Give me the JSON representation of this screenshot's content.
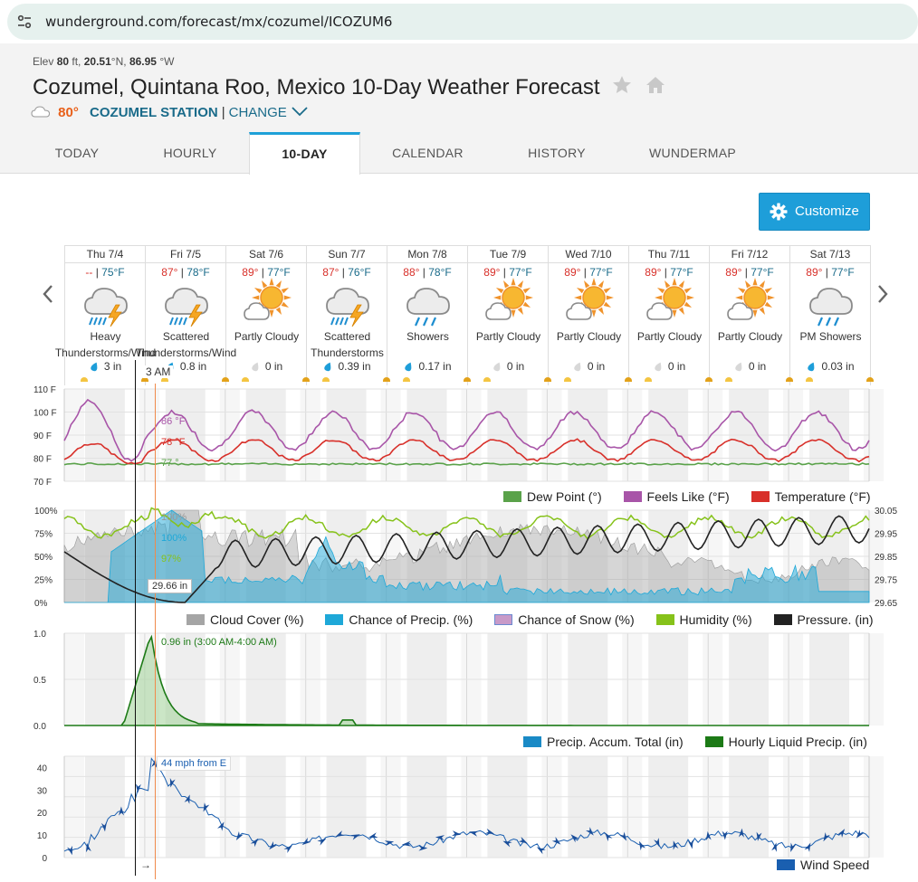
{
  "browser": {
    "url": "wunderground.com/forecast/mx/cozumel/ICOZUM6"
  },
  "header": {
    "elev_label": "Elev",
    "elev_value": "80",
    "elev_unit": "ft,",
    "lat_value": "20.51",
    "lat_unit": "°N,",
    "lon_value": "86.95",
    "lon_unit": "°W",
    "title": "Cozumel, Quintana Roo, Mexico 10-Day Weather Forecast",
    "current_temp": "80°",
    "station": "COZUMEL STATION",
    "separator": "|",
    "change_label": "CHANGE"
  },
  "tabs": [
    {
      "label": "TODAY"
    },
    {
      "label": "HOURLY"
    },
    {
      "label": "10-DAY"
    },
    {
      "label": "CALENDAR"
    },
    {
      "label": "HISTORY"
    },
    {
      "label": "WUNDERMAP"
    }
  ],
  "customize_label": "Customize",
  "days": [
    {
      "name": "Thu 7/4",
      "hi": "--",
      "lo": "75°F",
      "icon": "thunderstorm-icon",
      "cond": "Heavy",
      "cond2": "Thunderstorms/Wind",
      "precip": "3 in",
      "wet": true
    },
    {
      "name": "Fri 7/5",
      "hi": "87°",
      "lo": "78°F",
      "icon": "thunderstorm-icon",
      "cond": "Scattered",
      "cond2": "Thunderstorms/Wind",
      "precip": "0.8 in",
      "wet": true
    },
    {
      "name": "Sat 7/6",
      "hi": "89°",
      "lo": "77°F",
      "icon": "partly-cloudy-icon",
      "cond": "Partly Cloudy",
      "cond2": "",
      "precip": "0 in",
      "wet": false
    },
    {
      "name": "Sun 7/7",
      "hi": "87°",
      "lo": "76°F",
      "icon": "thunderstorm-icon",
      "cond": "Scattered",
      "cond2": "Thunderstorms",
      "precip": "0.39 in",
      "wet": true
    },
    {
      "name": "Mon 7/8",
      "hi": "88°",
      "lo": "78°F",
      "icon": "showers-icon",
      "cond": "Showers",
      "cond2": "",
      "precip": "0.17 in",
      "wet": true
    },
    {
      "name": "Tue 7/9",
      "hi": "89°",
      "lo": "77°F",
      "icon": "partly-cloudy-icon",
      "cond": "Partly Cloudy",
      "cond2": "",
      "precip": "0 in",
      "wet": false
    },
    {
      "name": "Wed 7/10",
      "hi": "89°",
      "lo": "77°F",
      "icon": "partly-cloudy-icon",
      "cond": "Partly Cloudy",
      "cond2": "",
      "precip": "0 in",
      "wet": false
    },
    {
      "name": "Thu 7/11",
      "hi": "89°",
      "lo": "77°F",
      "icon": "partly-cloudy-icon",
      "cond": "Partly Cloudy",
      "cond2": "",
      "precip": "0 in",
      "wet": false
    },
    {
      "name": "Fri 7/12",
      "hi": "89°",
      "lo": "77°F",
      "icon": "partly-cloudy-icon",
      "cond": "Partly Cloudy",
      "cond2": "",
      "precip": "0 in",
      "wet": false
    },
    {
      "name": "Sat 7/13",
      "hi": "89°",
      "lo": "77°F",
      "icon": "showers-icon",
      "cond": "PM Showers",
      "cond2": "",
      "precip": "0.03 in",
      "wet": true
    }
  ],
  "hover": {
    "time": "3 AM",
    "pressure": "29.66 in",
    "wind": "44 mph from E",
    "wind_arrow": "→",
    "precip": "0.96 in (3:00 AM-4:00 AM)"
  },
  "colors": {
    "temperature": "#d8302a",
    "feels_like": "#a855a8",
    "dew_point": "#5aa24a",
    "cloud_cover": "#a5a5a5",
    "chance_precip": "#1ea8d8",
    "chance_snow": "#c89ac8",
    "humidity": "#86c21a",
    "pressure": "#222222",
    "precip_accum": "#1a8ac6",
    "hourly_precip": "#1c7a16",
    "wind": "#1a5fb0"
  },
  "chart_data": [
    {
      "type": "line",
      "ticks": [
        "110 F",
        "100 F",
        "90 F",
        "80 F",
        "70 F"
      ],
      "ylim": [
        70,
        110
      ],
      "series": [
        {
          "name": "Dew Point (°)",
          "hover": "77 °",
          "daily_range": [
            76,
            78
          ]
        },
        {
          "name": "Feels Like (°F)",
          "hover": "86 °F",
          "daily_range": [
            85,
            100
          ]
        },
        {
          "name": "Temperature (°F)",
          "hover": "78 °F",
          "daily_range": [
            79,
            89
          ]
        }
      ]
    },
    {
      "type": "area",
      "left_ticks": [
        "100%",
        "75%",
        "50%",
        "25%",
        "0%"
      ],
      "right_ticks": [
        "30.05",
        "29.95",
        "29.85",
        "29.75",
        "29.65"
      ],
      "series": [
        {
          "name": "Cloud Cover (%)",
          "hover": "100%"
        },
        {
          "name": "Chance of Precip. (%)",
          "hover": "100%"
        },
        {
          "name": "Chance of Snow (%)",
          "hover": ""
        },
        {
          "name": "Humidity (%)",
          "hover": "97%"
        },
        {
          "name": "Pressure. (in)",
          "hover": "29.66 in"
        }
      ]
    },
    {
      "type": "area",
      "ticks": [
        "1.0",
        "0.5",
        "0.0"
      ],
      "ylim": [
        0,
        1
      ],
      "series": [
        {
          "name": "Precip. Accum. Total (in)"
        },
        {
          "name": "Hourly Liquid Precip. (in)",
          "peak": 0.96
        }
      ]
    },
    {
      "type": "line",
      "ticks": [
        "40",
        "30",
        "20",
        "10",
        "0"
      ],
      "ylim": [
        0,
        45
      ],
      "series": [
        {
          "name": "Wind Speed",
          "peak": 44
        }
      ]
    }
  ]
}
